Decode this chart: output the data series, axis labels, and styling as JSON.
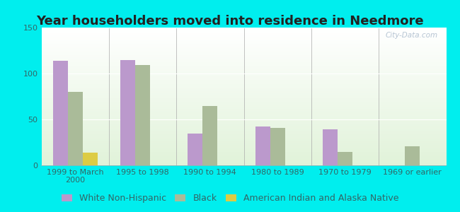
{
  "title": "Year householders moved into residence in Needmore",
  "categories": [
    "1999 to March\n2000",
    "1995 to 1998",
    "1990 to 1994",
    "1980 to 1989",
    "1970 to 1979",
    "1969 or earlier"
  ],
  "series": {
    "White Non-Hispanic": [
      114,
      115,
      35,
      42,
      39,
      0
    ],
    "Black": [
      80,
      109,
      65,
      41,
      15,
      21
    ],
    "American Indian and Alaska Native": [
      14,
      0,
      0,
      0,
      0,
      0
    ]
  },
  "colors": {
    "White Non-Hispanic": "#bb99cc",
    "Black": "#aabb99",
    "American Indian and Alaska Native": "#ddcc44"
  },
  "ylim": [
    0,
    150
  ],
  "yticks": [
    0,
    50,
    100,
    150
  ],
  "background_outer": "#00eeee",
  "title_fontsize": 13,
  "tick_fontsize": 8,
  "legend_fontsize": 9,
  "bar_width": 0.22,
  "watermark": "City-Data.com"
}
